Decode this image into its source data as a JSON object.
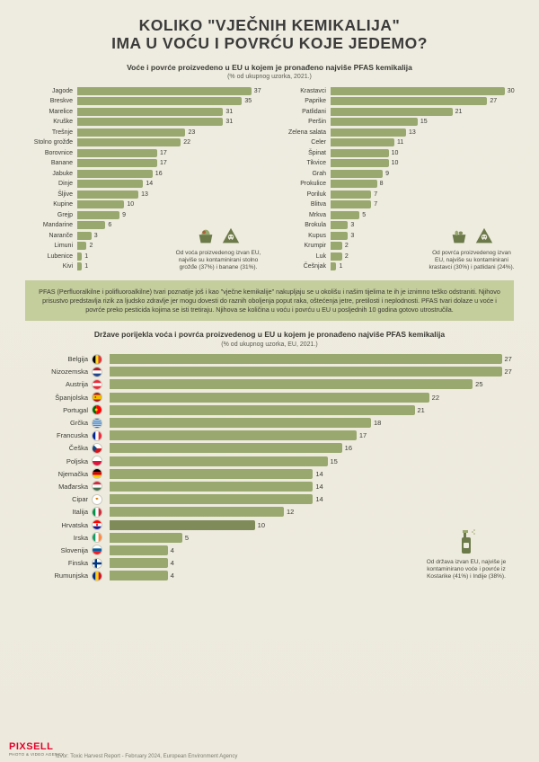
{
  "colors": {
    "bg": "#eeece0",
    "bar": "#99a86e",
    "bar_highlight": "#7f8c5a",
    "box": "#c4cd9c",
    "text": "#3b3b34",
    "muted": "#5b5b51"
  },
  "title_l1": "KOLIKO \"VJEČNIH KEMIKALIJA\"",
  "title_l2": "IMA U VOĆU I POVRĆU KOJE JEDEMO?",
  "section1_caption": "Voće i povrće proizvedeno u EU u kojem je pronađeno najviše PFAS kemikalija",
  "section1_sub": "(% od ukupnog uzorka, 2021.)",
  "fruit": {
    "max": 37,
    "items": [
      {
        "label": "Jagode",
        "value": 37
      },
      {
        "label": "Breskve",
        "value": 35
      },
      {
        "label": "Marelice",
        "value": 31
      },
      {
        "label": "Kruške",
        "value": 31
      },
      {
        "label": "Trešnje",
        "value": 23
      },
      {
        "label": "Stolno grožđe",
        "value": 22
      },
      {
        "label": "Borovnice",
        "value": 17
      },
      {
        "label": "Banane",
        "value": 17
      },
      {
        "label": "Jabuke",
        "value": 16
      },
      {
        "label": "Dinje",
        "value": 14
      },
      {
        "label": "Šljive",
        "value": 13
      },
      {
        "label": "Kupine",
        "value": 10
      },
      {
        "label": "Grejp",
        "value": 9
      },
      {
        "label": "Mandarine",
        "value": 6
      },
      {
        "label": "Naranče",
        "value": 3
      },
      {
        "label": "Limuni",
        "value": 2
      },
      {
        "label": "Lubenice",
        "value": 1
      },
      {
        "label": "Kivi",
        "value": 1
      }
    ],
    "callout": "Od voća proizvedenog izvan EU, najviše su kontaminirani stolno grožđe (37%) i banane (31%)."
  },
  "veg": {
    "max": 30,
    "items": [
      {
        "label": "Krastavci",
        "value": 30
      },
      {
        "label": "Paprike",
        "value": 27
      },
      {
        "label": "Patlidani",
        "value": 21
      },
      {
        "label": "Peršin",
        "value": 15
      },
      {
        "label": "Zelena salata",
        "value": 13
      },
      {
        "label": "Celer",
        "value": 11
      },
      {
        "label": "Špinat",
        "value": 10
      },
      {
        "label": "Tikvice",
        "value": 10
      },
      {
        "label": "Grah",
        "value": 9
      },
      {
        "label": "Prokulice",
        "value": 8
      },
      {
        "label": "Poriluk",
        "value": 7
      },
      {
        "label": "Blitva",
        "value": 7
      },
      {
        "label": "Mrkva",
        "value": 5
      },
      {
        "label": "Brokula",
        "value": 3
      },
      {
        "label": "Kupus",
        "value": 3
      },
      {
        "label": "Krumpir",
        "value": 2
      },
      {
        "label": "Luk",
        "value": 2
      },
      {
        "label": "Češnjak",
        "value": 1
      }
    ],
    "callout": "Od povrća proizvedenog izvan EU, najviše su kontaminirani krastavci (30%) i patlidani (24%)."
  },
  "pfas_text": "PFAS (Perfluoralkilne i polifluoroalkilne) tvari poznatije još i kao \"vječne kemikalije\" nakupljaju se u okolišu i našim tijelima te ih je iznimno teško odstraniti. Njihovo prisustvo predstavlja rizik za ljudsko zdravlje jer mogu dovesti do raznih oboljenja poput raka, oštećenja jetre, pretilosti i neplodnosti. PFAS tvari dolaze u voće i povrće preko pesticida kojima se isti tretiraju. Njihova se količina u voću i povrću u EU u posljednih 10 godina gotovo utrostručila.",
  "section2_caption": "Države porijekla voća i povrća proizvedenog u EU u kojem je pronađeno najviše PFAS kemikalija",
  "section2_sub": "(% od ukupnog uzorka, EU, 2021.)",
  "countries": {
    "max": 27,
    "items": [
      {
        "label": "Belgija",
        "value": 27,
        "flag": "be"
      },
      {
        "label": "Nizozemska",
        "value": 27,
        "flag": "nl"
      },
      {
        "label": "Austrija",
        "value": 25,
        "flag": "at"
      },
      {
        "label": "Španjolska",
        "value": 22,
        "flag": "es"
      },
      {
        "label": "Portugal",
        "value": 21,
        "flag": "pt"
      },
      {
        "label": "Grčka",
        "value": 18,
        "flag": "gr"
      },
      {
        "label": "Francuska",
        "value": 17,
        "flag": "fr"
      },
      {
        "label": "Češka",
        "value": 16,
        "flag": "cz"
      },
      {
        "label": "Poljska",
        "value": 15,
        "flag": "pl"
      },
      {
        "label": "Njemačka",
        "value": 14,
        "flag": "de"
      },
      {
        "label": "Mađarska",
        "value": 14,
        "flag": "hu"
      },
      {
        "label": "Cipar",
        "value": 14,
        "flag": "cy"
      },
      {
        "label": "Italija",
        "value": 12,
        "flag": "it"
      },
      {
        "label": "Hrvatska",
        "value": 10,
        "flag": "hr",
        "highlight": true
      },
      {
        "label": "Irska",
        "value": 5,
        "flag": "ie"
      },
      {
        "label": "Slovenija",
        "value": 4,
        "flag": "si"
      },
      {
        "label": "Finska",
        "value": 4,
        "flag": "fi"
      },
      {
        "label": "Rumunjska",
        "value": 4,
        "flag": "ro"
      }
    ],
    "callout": "Od država izvan EU, najviše je kontaminirano voće i povrće iz Kostarike (41%) i Indije (38%)."
  },
  "source": "Izvor: Toxic Harvest Report - February 2024, European Environment Agency",
  "logo_brand": "PIXSELL",
  "logo_sub": "PHOTO & VIDEO AGENCY"
}
